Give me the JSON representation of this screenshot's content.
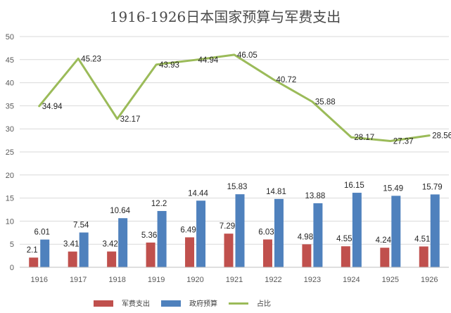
{
  "chart_data": {
    "type": "bar",
    "title": "1916-1926日本国家预算与军费支出",
    "categories": [
      "1916",
      "1917",
      "1918",
      "1919",
      "1920",
      "1921",
      "1922",
      "1923",
      "1924",
      "1925",
      "1926"
    ],
    "ylim": [
      0,
      50
    ],
    "yticks": [
      "0",
      "5",
      "10",
      "15",
      "20",
      "25",
      "30",
      "35",
      "40",
      "45",
      "50"
    ],
    "grid": true,
    "legend_position": "bottom",
    "series": [
      {
        "name": "军费支出",
        "kind": "bar",
        "color": "#c0504d",
        "values": [
          2.1,
          3.41,
          3.42,
          5.36,
          6.49,
          7.29,
          6.03,
          4.98,
          4.55,
          4.24,
          4.51
        ]
      },
      {
        "name": "政府预算",
        "kind": "bar",
        "color": "#4f81bd",
        "values": [
          6.01,
          7.54,
          10.64,
          12.2,
          14.44,
          15.83,
          14.81,
          13.88,
          16.15,
          15.49,
          15.79
        ]
      },
      {
        "name": "占比",
        "kind": "line",
        "color": "#9bbb59",
        "values": [
          34.94,
          45.23,
          32.17,
          43.93,
          44.94,
          46.05,
          40.72,
          35.88,
          28.17,
          27.37,
          28.56
        ]
      }
    ]
  }
}
